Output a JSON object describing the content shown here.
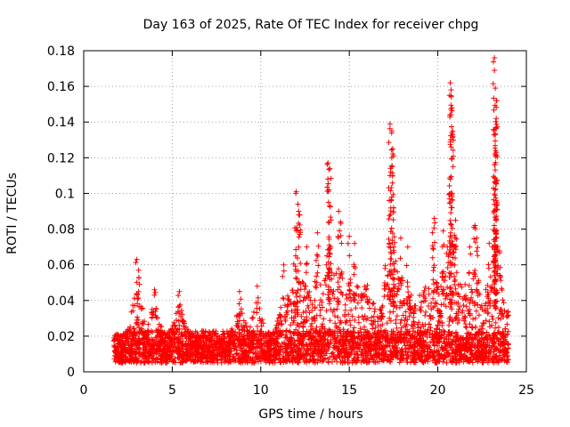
{
  "chart_data": {
    "type": "scatter",
    "title": "Day 163 of 2025, Rate Of TEC Index for receiver chpg",
    "xlabel": "GPS time / hours",
    "ylabel": "ROTI / TECUs",
    "xlim": [
      0,
      25
    ],
    "ylim": [
      0,
      0.18
    ],
    "x_ticks": [
      "0",
      "5",
      "10",
      "15",
      "20",
      "25"
    ],
    "y_ticks": [
      "0",
      "0.02",
      "0.04",
      "0.06",
      "0.08",
      "0.1",
      "0.12",
      "0.14",
      "0.16",
      "0.18"
    ],
    "grid": true,
    "marker": "+",
    "series_color": "#ff0000",
    "x_range_of_data": [
      1.7,
      24.0
    ],
    "baseline_band": [
      0.005,
      0.035
    ],
    "peaks": [
      {
        "x": 3.0,
        "y": 0.063
      },
      {
        "x": 3.1,
        "y": 0.057
      },
      {
        "x": 4.0,
        "y": 0.046
      },
      {
        "x": 5.4,
        "y": 0.045
      },
      {
        "x": 9.8,
        "y": 0.048
      },
      {
        "x": 8.8,
        "y": 0.045
      },
      {
        "x": 11.3,
        "y": 0.06
      },
      {
        "x": 12.0,
        "y": 0.101
      },
      {
        "x": 12.1,
        "y": 0.094
      },
      {
        "x": 12.2,
        "y": 0.088
      },
      {
        "x": 12.6,
        "y": 0.07
      },
      {
        "x": 13.2,
        "y": 0.078
      },
      {
        "x": 13.8,
        "y": 0.117
      },
      {
        "x": 13.9,
        "y": 0.114
      },
      {
        "x": 13.85,
        "y": 0.102
      },
      {
        "x": 13.9,
        "y": 0.093
      },
      {
        "x": 14.4,
        "y": 0.09
      },
      {
        "x": 14.5,
        "y": 0.084
      },
      {
        "x": 15.0,
        "y": 0.076
      },
      {
        "x": 15.3,
        "y": 0.072
      },
      {
        "x": 17.3,
        "y": 0.139
      },
      {
        "x": 17.4,
        "y": 0.135
      },
      {
        "x": 17.45,
        "y": 0.125
      },
      {
        "x": 17.5,
        "y": 0.121
      },
      {
        "x": 17.3,
        "y": 0.11
      },
      {
        "x": 17.4,
        "y": 0.098
      },
      {
        "x": 17.5,
        "y": 0.092
      },
      {
        "x": 17.9,
        "y": 0.075
      },
      {
        "x": 18.3,
        "y": 0.07
      },
      {
        "x": 19.8,
        "y": 0.086
      },
      {
        "x": 19.7,
        "y": 0.078
      },
      {
        "x": 20.3,
        "y": 0.079
      },
      {
        "x": 20.7,
        "y": 0.162
      },
      {
        "x": 20.75,
        "y": 0.158
      },
      {
        "x": 20.8,
        "y": 0.148
      },
      {
        "x": 20.8,
        "y": 0.134
      },
      {
        "x": 20.7,
        "y": 0.108
      },
      {
        "x": 20.75,
        "y": 0.1
      },
      {
        "x": 20.8,
        "y": 0.092
      },
      {
        "x": 21.0,
        "y": 0.085
      },
      {
        "x": 22.1,
        "y": 0.082
      },
      {
        "x": 22.2,
        "y": 0.075
      },
      {
        "x": 21.8,
        "y": 0.07
      },
      {
        "x": 23.2,
        "y": 0.176
      },
      {
        "x": 23.2,
        "y": 0.169
      },
      {
        "x": 23.25,
        "y": 0.159
      },
      {
        "x": 23.3,
        "y": 0.152
      },
      {
        "x": 23.3,
        "y": 0.142
      },
      {
        "x": 23.25,
        "y": 0.133
      },
      {
        "x": 23.3,
        "y": 0.123
      },
      {
        "x": 23.25,
        "y": 0.106
      },
      {
        "x": 23.2,
        "y": 0.094
      },
      {
        "x": 23.3,
        "y": 0.079
      },
      {
        "x": 22.9,
        "y": 0.072
      }
    ]
  }
}
